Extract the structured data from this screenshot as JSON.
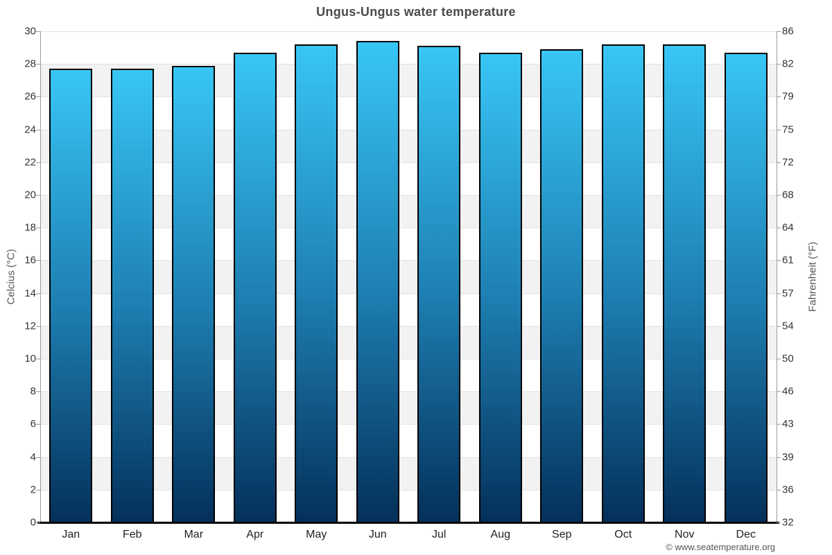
{
  "chart_data": {
    "type": "bar",
    "title": "Ungus-Ungus water temperature",
    "categories": [
      "Jan",
      "Feb",
      "Mar",
      "Apr",
      "May",
      "Jun",
      "Jul",
      "Aug",
      "Sep",
      "Oct",
      "Nov",
      "Dec"
    ],
    "series": [
      {
        "name": "Water temperature (°C)",
        "values": [
          27.7,
          27.7,
          27.9,
          28.7,
          29.2,
          29.4,
          29.1,
          28.7,
          28.9,
          29.2,
          29.2,
          28.7
        ]
      }
    ],
    "y_axis_left": {
      "label": "Celcius (°C)",
      "min": 0,
      "max": 30,
      "ticks": [
        0,
        2,
        4,
        6,
        8,
        10,
        12,
        14,
        16,
        18,
        20,
        22,
        24,
        26,
        28,
        30
      ]
    },
    "y_axis_right": {
      "label": "Fahrenheit (°F)",
      "ticks": [
        32,
        36,
        39,
        43,
        46,
        50,
        54,
        57,
        61,
        64,
        68,
        72,
        75,
        79,
        82,
        86
      ]
    },
    "legend": "none",
    "grid": true,
    "plot_bands_alternating": true,
    "colors": {
      "bar_top": "#38c6f5",
      "bar_mid": "#1e7fb2",
      "bar_bottom": "#04305a",
      "bar_border": "#000000",
      "band": "#f2f2f2",
      "gridline": "#e2e2e2",
      "axis_line": "#999999",
      "x_axis_line": "#000000"
    }
  },
  "footer": {
    "credit": "© www.seatemperature.org"
  }
}
